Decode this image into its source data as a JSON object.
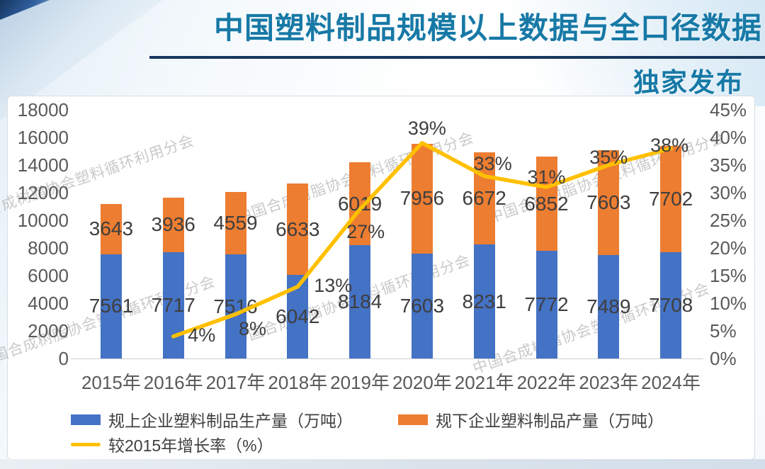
{
  "header": {
    "title": "中国塑料制品规模以上数据与全口径数据",
    "subtitle": "独家发布",
    "title_color": "#1779a6",
    "rule_color": "#17375e"
  },
  "watermark": {
    "text": "中国合成树脂协会塑料循环利用分会"
  },
  "chart_data": {
    "type": "bar",
    "subtype": "stacked-bars-with-line",
    "categories": [
      "2015年",
      "2016年",
      "2017年",
      "2018年",
      "2019年",
      "2020年",
      "2021年",
      "2022年",
      "2023年",
      "2024年"
    ],
    "series": [
      {
        "name": "规上企业塑料制品生产量（万吨）",
        "type": "bar",
        "color": "#4472C4",
        "values": [
          7561,
          7717,
          7516,
          6042,
          8184,
          7603,
          8231,
          7772,
          7489,
          7708
        ]
      },
      {
        "name": "规下企业塑料制品产量（万吨）",
        "type": "bar",
        "color": "#ED7D31",
        "values": [
          3643,
          3936,
          4559,
          6633,
          6019,
          7956,
          6672,
          6852,
          7603,
          7702
        ]
      },
      {
        "name": "较2015年增长率（%）",
        "type": "line",
        "color": "#FFC000",
        "values": [
          null,
          4,
          8,
          13,
          27,
          39,
          33,
          31,
          35,
          38
        ],
        "labels": [
          null,
          "4%",
          "8%",
          "13%",
          "27%",
          "39%",
          "33%",
          "31%",
          "35%",
          "38%"
        ]
      }
    ],
    "left_axis": {
      "min": 0,
      "max": 18000,
      "step": 2000
    },
    "right_axis": {
      "min": 0,
      "max": 45,
      "step": 5,
      "suffix": "%"
    },
    "grid": false,
    "legend_position": "bottom",
    "bar_stacked": true,
    "axis_text_color": "#595959",
    "label_text_color": "#3f3f3f"
  }
}
